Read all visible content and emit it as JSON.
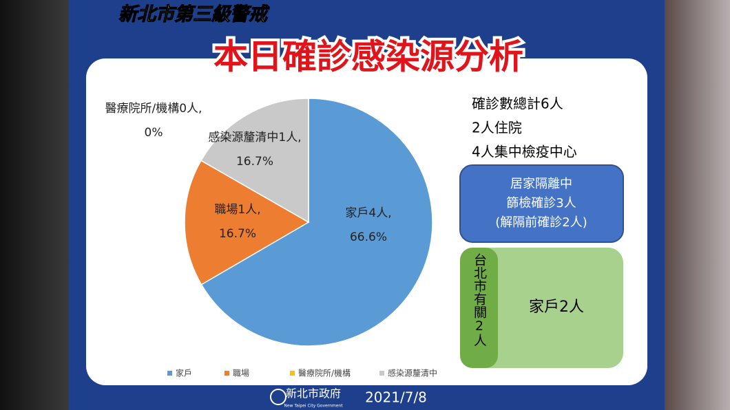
{
  "header": {
    "subtitle": "新北市第三級警戒",
    "title": "本日確診感染源分析"
  },
  "chart_data": {
    "type": "pie",
    "categories": [
      "家戶",
      "職場",
      "醫療院所/機構",
      "感染源釐清中"
    ],
    "data_labels": [
      "家戶4人,",
      "職場1人,",
      "醫療院所/機構0人,",
      "感染源釐清中1人,"
    ],
    "values": [
      66.6,
      16.7,
      0,
      16.7
    ],
    "value_labels": [
      "66.6%",
      "16.7%",
      "0%",
      "16.7%"
    ],
    "colors": [
      "#5b9bd5",
      "#ed7d31",
      "#ffc000",
      "#c9c9c9"
    ],
    "legend": "bottom"
  },
  "summary": {
    "lines": [
      "確診數總計6人",
      "2人住院",
      "4人集中檢疫中心"
    ]
  },
  "home_quarantine": {
    "lines": [
      "居家隔離中",
      "篩檢確診3人",
      "(解隔前確診2人)"
    ]
  },
  "taipei": {
    "label": "台北市有關2人",
    "detail": "家戶2人"
  },
  "footer": {
    "org": "新北市政府",
    "org_en": "New Taipei City Government",
    "date": "2021/7/8"
  }
}
